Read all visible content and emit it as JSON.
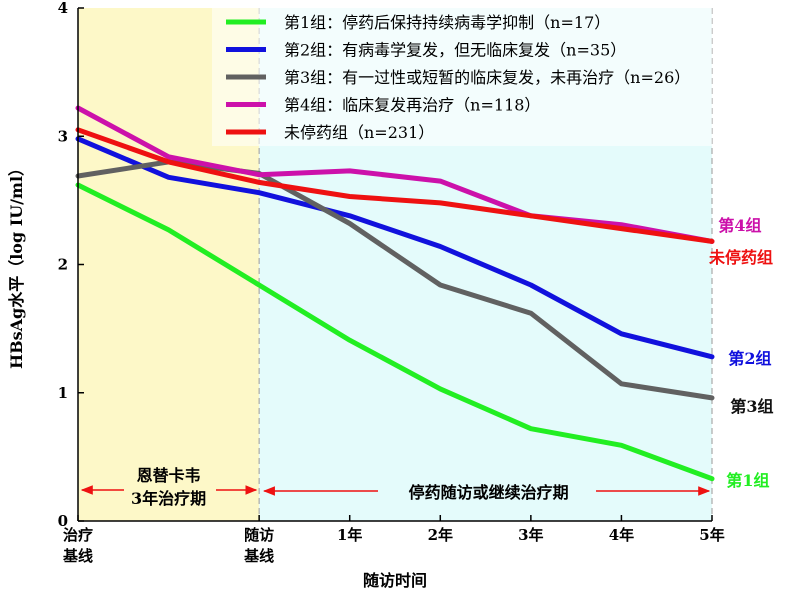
{
  "chart_data": {
    "type": "line",
    "ylabel": "HBsAg水平（log IU/ml）",
    "xlabel": "随访时间",
    "ylim": [
      0,
      4
    ],
    "yticks": [
      0,
      1,
      2,
      3,
      4
    ],
    "x_positions": [
      0,
      2,
      3,
      4,
      5,
      6,
      7
    ],
    "xtick_labels": [
      {
        "x": 0,
        "line1": "治疗",
        "line2": "基线"
      },
      {
        "x": 2,
        "line1": "随访",
        "line2": "基线"
      },
      {
        "x": 3,
        "line1": "1年",
        "line2": ""
      },
      {
        "x": 4,
        "line1": "2年",
        "line2": ""
      },
      {
        "x": 5,
        "line1": "3年",
        "line2": ""
      },
      {
        "x": 6,
        "line1": "4年",
        "line2": ""
      },
      {
        "x": 7,
        "line1": "5年",
        "line2": ""
      }
    ],
    "phases": [
      {
        "label_line1": "恩替卡韦",
        "label_line2": "3年治疗期",
        "x_start": 0,
        "x_end": 2,
        "color": "#fdf8c8"
      },
      {
        "label_line1": "停药随访或继续治疗期",
        "label_line2": "",
        "x_start": 2,
        "x_end": 7,
        "color": "#e4fbfb"
      }
    ],
    "series": [
      {
        "name": "第1组：停药后保持持续病毒学抑制（n=17）",
        "end_label": "第1组",
        "color": "#22ee22",
        "points": [
          [
            0,
            2.62
          ],
          [
            1,
            2.27
          ],
          [
            2,
            1.84
          ],
          [
            3,
            1.41
          ],
          [
            4,
            1.03
          ],
          [
            5,
            0.72
          ],
          [
            6,
            0.59
          ],
          [
            7,
            0.33
          ]
        ]
      },
      {
        "name": "第2组：有病毒学复发，但无临床复发（n=35）",
        "end_label": "第2组",
        "color": "#1111dd",
        "points": [
          [
            0,
            2.98
          ],
          [
            1,
            2.68
          ],
          [
            2,
            2.56
          ],
          [
            3,
            2.38
          ],
          [
            4,
            2.14
          ],
          [
            5,
            1.84
          ],
          [
            6,
            1.46
          ],
          [
            7,
            1.28
          ]
        ]
      },
      {
        "name": "第3组：有一过性或短暂的临床复发，未再治疗（n=26）",
        "end_label": "第3组",
        "color": "#616161",
        "points": [
          [
            0,
            2.69
          ],
          [
            1,
            2.8
          ],
          [
            2,
            2.71
          ],
          [
            3,
            2.32
          ],
          [
            4,
            1.84
          ],
          [
            5,
            1.62
          ],
          [
            6,
            1.07
          ],
          [
            7,
            0.96
          ]
        ]
      },
      {
        "name": "第4组：临床复发再治疗（n=118）",
        "end_label": "第4组",
        "color": "#cc11aa",
        "points": [
          [
            0,
            3.22
          ],
          [
            1,
            2.84
          ],
          [
            2,
            2.7
          ],
          [
            3,
            2.73
          ],
          [
            4,
            2.65
          ],
          [
            5,
            2.38
          ],
          [
            6,
            2.31
          ],
          [
            7,
            2.18
          ]
        ]
      },
      {
        "name": "未停药组（n=231）",
        "end_label": "未停药组",
        "color": "#ee1111",
        "points": [
          [
            0,
            3.05
          ],
          [
            1,
            2.8
          ],
          [
            2,
            2.64
          ],
          [
            3,
            2.53
          ],
          [
            4,
            2.48
          ],
          [
            5,
            2.38
          ],
          [
            6,
            2.28
          ],
          [
            7,
            2.18
          ]
        ]
      }
    ]
  }
}
